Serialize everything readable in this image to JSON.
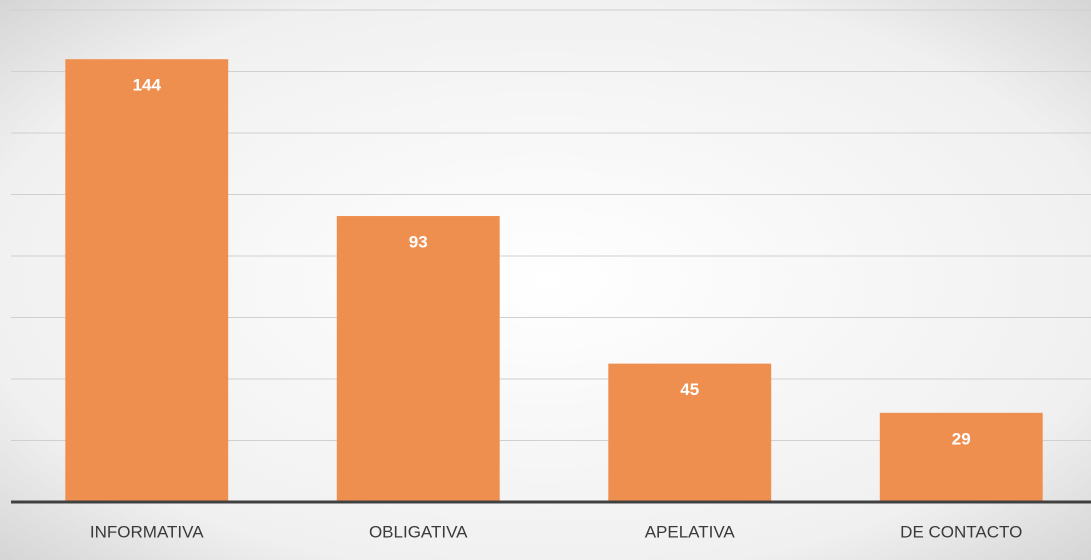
{
  "chart_data": {
    "type": "bar",
    "categories": [
      "INFORMATIVA",
      "OBLIGATIVA",
      "APELATIVA",
      "DE CONTACTO"
    ],
    "values": [
      144,
      93,
      45,
      29
    ],
    "color": "#ef8f4f",
    "ylim": [
      0,
      160
    ],
    "yticks": [
      0,
      20,
      40,
      60,
      80,
      100,
      120,
      140,
      160
    ],
    "grid": true
  }
}
